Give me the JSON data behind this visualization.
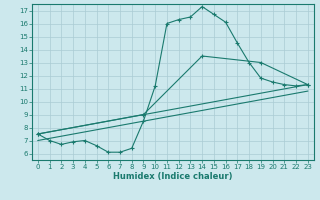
{
  "xlabel": "Humidex (Indice chaleur)",
  "bg_color": "#cce8ed",
  "grid_color": "#aaccd4",
  "line_color": "#1a7a6e",
  "xlim": [
    -0.5,
    23.5
  ],
  "ylim": [
    5.5,
    17.5
  ],
  "yticks": [
    6,
    7,
    8,
    9,
    10,
    11,
    12,
    13,
    14,
    15,
    16,
    17
  ],
  "xticks": [
    0,
    1,
    2,
    3,
    4,
    5,
    6,
    7,
    8,
    9,
    10,
    11,
    12,
    13,
    14,
    15,
    16,
    17,
    18,
    19,
    20,
    21,
    22,
    23
  ],
  "line1_x": [
    0,
    1,
    2,
    3,
    4,
    5,
    6,
    7,
    8,
    9,
    10,
    11,
    12,
    13,
    14,
    15,
    16,
    17,
    18,
    19,
    20,
    21,
    22,
    23
  ],
  "line1_y": [
    7.5,
    7.0,
    6.7,
    6.9,
    7.0,
    6.6,
    6.1,
    6.1,
    6.4,
    8.5,
    11.2,
    16.0,
    16.3,
    16.5,
    17.3,
    16.7,
    16.1,
    14.5,
    13.0,
    11.8,
    11.5,
    11.3,
    11.2,
    11.3
  ],
  "line2_x": [
    0,
    9,
    14,
    19,
    23
  ],
  "line2_y": [
    7.5,
    9.0,
    13.5,
    13.0,
    11.3
  ],
  "line3_x": [
    0,
    23
  ],
  "line3_y": [
    7.5,
    11.3
  ],
  "line4_x": [
    0,
    23
  ],
  "line4_y": [
    7.0,
    10.8
  ]
}
